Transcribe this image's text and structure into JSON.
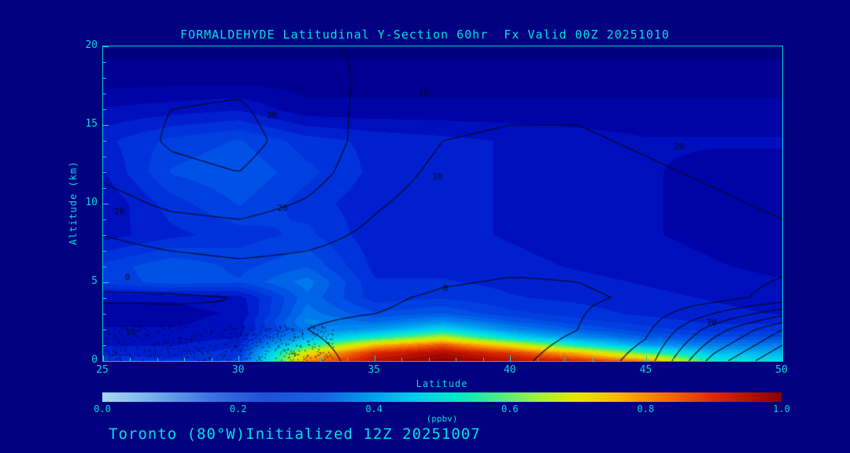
{
  "page": {
    "background": "#000080",
    "accent": "#00e0e0"
  },
  "chart": {
    "title": "FORMALDEHYDE Latitudinal Y-Section 60hr  Fx Valid 00Z 20251010",
    "xlabel": "Latitude",
    "ylabel": "Altitude (km)",
    "units": "(ppbv)",
    "footer": "Toronto (80°W)Initialized 12Z 20251007"
  },
  "chart_data": {
    "type": "heatmap",
    "title": "FORMALDEHYDE Latitudinal Y-Section 60hr  Fx Valid 00Z 20251010",
    "x_axis": {
      "label": "Latitude",
      "min": 25,
      "max": 50,
      "major_ticks": [
        25,
        30,
        35,
        40,
        45,
        50
      ],
      "minor_step": 1
    },
    "y_axis": {
      "label": "Altitude (km)",
      "min": 0,
      "max": 20,
      "major_ticks": [
        0,
        5,
        10,
        15,
        20
      ],
      "minor_step": 1
    },
    "fill_field": {
      "name": "formaldehyde_ppbv",
      "lats": [
        25,
        27.5,
        30,
        32.5,
        35,
        37.5,
        40,
        42.5,
        45,
        47.5,
        50
      ],
      "alts": [
        0,
        0.5,
        1,
        1.5,
        2,
        2.5,
        3,
        4,
        5,
        6,
        8,
        10,
        12,
        14,
        16,
        18,
        20
      ],
      "values": [
        [
          0.2,
          0.19,
          0.22,
          0.8,
          0.95,
          1.0,
          0.95,
          0.9,
          0.8,
          0.5,
          0.45
        ],
        [
          0.18,
          0.18,
          0.2,
          0.7,
          0.9,
          0.96,
          0.88,
          0.75,
          0.55,
          0.4,
          0.38
        ],
        [
          0.16,
          0.16,
          0.18,
          0.5,
          0.75,
          0.85,
          0.7,
          0.5,
          0.35,
          0.3,
          0.3
        ],
        [
          0.15,
          0.15,
          0.16,
          0.36,
          0.5,
          0.65,
          0.45,
          0.33,
          0.26,
          0.24,
          0.24
        ],
        [
          0.14,
          0.14,
          0.15,
          0.3,
          0.35,
          0.45,
          0.32,
          0.26,
          0.22,
          0.2,
          0.2
        ],
        [
          0.13,
          0.13,
          0.15,
          0.32,
          0.28,
          0.33,
          0.26,
          0.22,
          0.2,
          0.18,
          0.18
        ],
        [
          0.13,
          0.13,
          0.14,
          0.3,
          0.24,
          0.26,
          0.22,
          0.2,
          0.18,
          0.17,
          0.16
        ],
        [
          0.14,
          0.14,
          0.15,
          0.28,
          0.2,
          0.21,
          0.19,
          0.18,
          0.17,
          0.16,
          0.15
        ],
        [
          0.22,
          0.25,
          0.24,
          0.3,
          0.19,
          0.19,
          0.18,
          0.17,
          0.16,
          0.15,
          0.14
        ],
        [
          0.22,
          0.26,
          0.23,
          0.26,
          0.18,
          0.18,
          0.17,
          0.16,
          0.15,
          0.14,
          0.13
        ],
        [
          0.15,
          0.18,
          0.2,
          0.22,
          0.17,
          0.17,
          0.16,
          0.15,
          0.14,
          0.13,
          0.12
        ],
        [
          0.14,
          0.2,
          0.24,
          0.2,
          0.17,
          0.17,
          0.16,
          0.15,
          0.14,
          0.13,
          0.12
        ],
        [
          0.16,
          0.24,
          0.26,
          0.22,
          0.18,
          0.17,
          0.16,
          0.15,
          0.14,
          0.13,
          0.13
        ],
        [
          0.18,
          0.22,
          0.24,
          0.2,
          0.18,
          0.17,
          0.16,
          0.15,
          0.14,
          0.14,
          0.14
        ],
        [
          0.14,
          0.15,
          0.16,
          0.12,
          0.12,
          0.12,
          0.12,
          0.12,
          0.12,
          0.12,
          0.12
        ],
        [
          0.1,
          0.1,
          0.1,
          0.1,
          0.1,
          0.1,
          0.1,
          0.1,
          0.1,
          0.1,
          0.1
        ],
        [
          0.08,
          0.08,
          0.08,
          0.08,
          0.08,
          0.08,
          0.08,
          0.08,
          0.08,
          0.08,
          0.08
        ]
      ]
    },
    "fill_colormap": [
      [
        0.0,
        "#000068"
      ],
      [
        0.08,
        "#000080"
      ],
      [
        0.12,
        "#0000a0"
      ],
      [
        0.16,
        "#0014c8"
      ],
      [
        0.2,
        "#0032dc"
      ],
      [
        0.25,
        "#0050e6"
      ],
      [
        0.3,
        "#0078ec"
      ],
      [
        0.36,
        "#00a0f0"
      ],
      [
        0.42,
        "#00c8f0"
      ],
      [
        0.48,
        "#00e4dc"
      ],
      [
        0.54,
        "#28eca0"
      ],
      [
        0.6,
        "#78f050"
      ],
      [
        0.66,
        "#c8f000"
      ],
      [
        0.72,
        "#f0d800"
      ],
      [
        0.78,
        "#f8a000"
      ],
      [
        0.84,
        "#f06000"
      ],
      [
        0.9,
        "#dc2800"
      ],
      [
        0.95,
        "#b40e00"
      ],
      [
        1.0,
        "#8c0000"
      ]
    ],
    "overlay_contours": {
      "levels": [
        0,
        10,
        20,
        30,
        40,
        50,
        60,
        70
      ],
      "line_color": "#000a20",
      "lats": [
        25,
        27.5,
        30,
        32.5,
        35,
        37.5,
        40,
        42.5,
        45,
        47.5,
        50
      ],
      "alts": [
        0,
        2,
        4,
        6,
        8,
        10,
        12,
        14,
        16,
        18,
        20
      ],
      "values": [
        [
          10,
          7,
          4,
          1,
          -1,
          -2,
          -1,
          2,
          15,
          55,
          80
        ],
        [
          6,
          4,
          2,
          0,
          -1,
          -2,
          -2,
          0,
          8,
          35,
          60
        ],
        [
          -1,
          -1,
          0,
          1,
          1,
          -1,
          -2,
          -1,
          1,
          6,
          14
        ],
        [
          4,
          6,
          8,
          7,
          5,
          2,
          1,
          1,
          3,
          5,
          8
        ],
        [
          10,
          14,
          16,
          13,
          8,
          4,
          3,
          3,
          5,
          7,
          9
        ],
        [
          16,
          22,
          24,
          19,
          11,
          6,
          5,
          5,
          7,
          9,
          11
        ],
        [
          22,
          28,
          30,
          24,
          14,
          8,
          7,
          7,
          9,
          11,
          13
        ],
        [
          25,
          31,
          33,
          26,
          16,
          10,
          9,
          9,
          11,
          13,
          15
        ],
        [
          26,
          30,
          31,
          25,
          17,
          12,
          11,
          11,
          13,
          15,
          17
        ],
        [
          24,
          27,
          28,
          24,
          18,
          14,
          13,
          13,
          15,
          17,
          19
        ],
        [
          22,
          24,
          24,
          22,
          18,
          15,
          14,
          14,
          16,
          18,
          20
        ]
      ],
      "labels": [
        {
          "text": "10",
          "lat": 36.8,
          "alt": 17.0
        },
        {
          "text": "30",
          "lat": 31.2,
          "alt": 15.6
        },
        {
          "text": "20",
          "lat": 31.6,
          "alt": 9.7
        },
        {
          "text": "10",
          "lat": 37.3,
          "alt": 11.7
        },
        {
          "text": "10",
          "lat": 25.6,
          "alt": 9.5
        },
        {
          "text": "0",
          "lat": 25.9,
          "alt": 5.3
        },
        {
          "text": "0",
          "lat": 37.6,
          "alt": 4.6
        },
        {
          "text": "10",
          "lat": 26.0,
          "alt": 1.8
        },
        {
          "text": "70",
          "lat": 47.4,
          "alt": 2.4
        },
        {
          "text": "20",
          "lat": 46.2,
          "alt": 13.6
        }
      ]
    },
    "stipple": {
      "lat_min": 25,
      "lat_max": 33.5,
      "alt_min": 0,
      "alt_max": 2.3,
      "count": 520,
      "color": "#00001a"
    },
    "colorbar": {
      "min": 0.0,
      "max": 1.0,
      "tick_labels": [
        "0.0",
        "0.2",
        "0.4",
        "0.6",
        "0.8",
        "1.0"
      ],
      "stops": [
        [
          0.0,
          "#a8d8f0"
        ],
        [
          0.08,
          "#70acec"
        ],
        [
          0.16,
          "#3c72e0"
        ],
        [
          0.24,
          "#2050d8"
        ],
        [
          0.32,
          "#1860e2"
        ],
        [
          0.4,
          "#00a0ec"
        ],
        [
          0.46,
          "#00ccec"
        ],
        [
          0.52,
          "#00e8c8"
        ],
        [
          0.58,
          "#48ec88"
        ],
        [
          0.64,
          "#a0f040"
        ],
        [
          0.7,
          "#e8e800"
        ],
        [
          0.76,
          "#f8b800"
        ],
        [
          0.83,
          "#f47000"
        ],
        [
          0.9,
          "#e02800"
        ],
        [
          1.0,
          "#8c0000"
        ]
      ]
    }
  }
}
